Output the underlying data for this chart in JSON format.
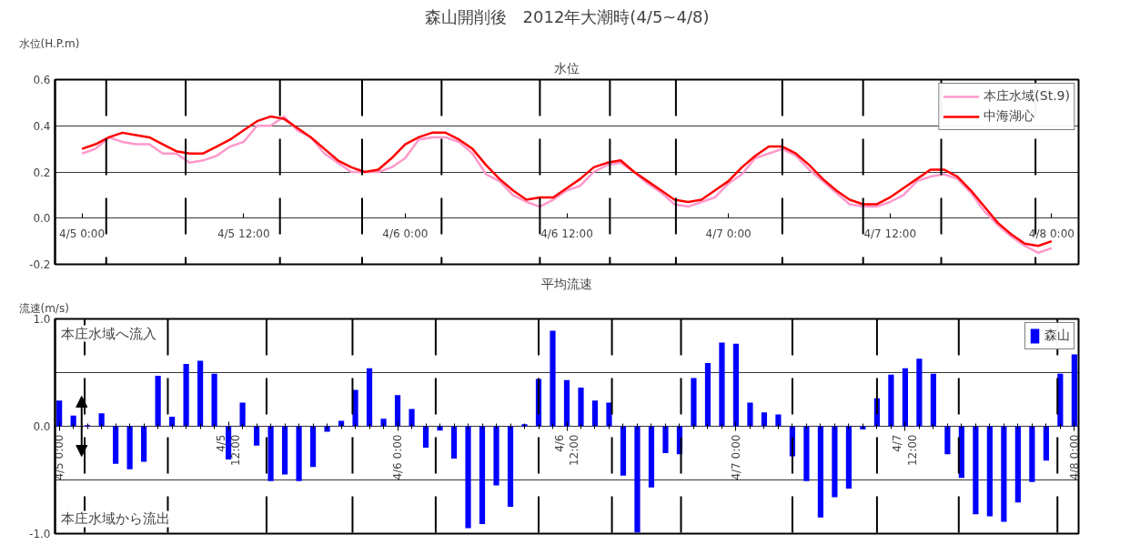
{
  "chart_data": [
    {
      "type": "line",
      "title": "森山開削後　2012年大潮時(4/5~4/8)",
      "subtitle": "水位",
      "ylabel": "水位(H.P.m)",
      "x": [
        "2012-04-05T00:00",
        "2012-04-05T01:00",
        "2012-04-05T02:00",
        "2012-04-05T03:00",
        "2012-04-05T04:00",
        "2012-04-05T05:00",
        "2012-04-05T06:00",
        "2012-04-05T07:00",
        "2012-04-05T08:00",
        "2012-04-05T09:00",
        "2012-04-05T10:00",
        "2012-04-05T11:00",
        "2012-04-05T12:00",
        "2012-04-05T13:00",
        "2012-04-05T14:00",
        "2012-04-05T15:00",
        "2012-04-05T16:00",
        "2012-04-05T17:00",
        "2012-04-05T18:00",
        "2012-04-05T19:00",
        "2012-04-05T20:00",
        "2012-04-05T21:00",
        "2012-04-05T22:00",
        "2012-04-05T23:00",
        "2012-04-06T00:00",
        "2012-04-06T01:00",
        "2012-04-06T02:00",
        "2012-04-06T03:00",
        "2012-04-06T04:00",
        "2012-04-06T05:00",
        "2012-04-06T06:00",
        "2012-04-06T07:00",
        "2012-04-06T08:00",
        "2012-04-06T09:00",
        "2012-04-06T10:00",
        "2012-04-06T11:00",
        "2012-04-06T12:00",
        "2012-04-06T13:00",
        "2012-04-06T14:00",
        "2012-04-06T15:00",
        "2012-04-06T16:00",
        "2012-04-06T17:00",
        "2012-04-06T18:00",
        "2012-04-06T19:00",
        "2012-04-06T20:00",
        "2012-04-06T21:00",
        "2012-04-06T22:00",
        "2012-04-06T23:00",
        "2012-04-07T00:00",
        "2012-04-07T01:00",
        "2012-04-07T02:00",
        "2012-04-07T03:00",
        "2012-04-07T04:00",
        "2012-04-07T05:00",
        "2012-04-07T06:00",
        "2012-04-07T07:00",
        "2012-04-07T08:00",
        "2012-04-07T09:00",
        "2012-04-07T10:00",
        "2012-04-07T11:00",
        "2012-04-07T12:00",
        "2012-04-07T13:00",
        "2012-04-07T14:00",
        "2012-04-07T15:00",
        "2012-04-07T16:00",
        "2012-04-07T17:00",
        "2012-04-07T18:00",
        "2012-04-07T19:00",
        "2012-04-07T20:00",
        "2012-04-07T21:00",
        "2012-04-07T22:00",
        "2012-04-07T23:00",
        "2012-04-08T00:00"
      ],
      "xlim": [
        "2012-04-04T22:00",
        "2012-04-08T02:00"
      ],
      "xticks": [
        {
          "value": "2012-04-05T00:00",
          "label": "4/5 0:00"
        },
        {
          "value": "2012-04-05T12:00",
          "label": "4/5 12:00"
        },
        {
          "value": "2012-04-06T00:00",
          "label": "4/6 0:00"
        },
        {
          "value": "2012-04-06T12:00",
          "label": "4/6 12:00"
        },
        {
          "value": "2012-04-07T00:00",
          "label": "4/7 0:00"
        },
        {
          "value": "2012-04-07T12:00",
          "label": "4/7 12:00"
        },
        {
          "value": "2012-04-08T00:00",
          "label": "4/8 0:00"
        }
      ],
      "ylim": [
        -0.2,
        0.6
      ],
      "yticks": [
        {
          "value": -0.2,
          "label": "-0.2"
        },
        {
          "value": 0,
          "label": "0.0"
        },
        {
          "value": 0.2,
          "label": "0.2"
        },
        {
          "value": 0.4,
          "label": "0.4"
        },
        {
          "value": 0.6,
          "label": "0.6"
        }
      ],
      "grid": "y",
      "legend": "top right",
      "line_style": "solid",
      "series": [
        {
          "name": "本庄水域(St.9)",
          "color": "#ff99cc",
          "values": [
            0.28,
            0.3,
            0.35,
            0.33,
            0.32,
            0.32,
            0.28,
            0.28,
            0.24,
            0.25,
            0.27,
            0.31,
            0.33,
            0.4,
            0.4,
            0.44,
            0.38,
            0.35,
            0.28,
            0.24,
            0.2,
            0.2,
            0.2,
            0.22,
            0.26,
            0.34,
            0.35,
            0.35,
            0.33,
            0.28,
            0.19,
            0.16,
            0.1,
            0.07,
            0.05,
            0.08,
            0.12,
            0.14,
            0.2,
            0.23,
            0.24,
            0.2,
            0.15,
            0.11,
            0.06,
            0.05,
            0.07,
            0.09,
            0.15,
            0.19,
            0.26,
            0.28,
            0.3,
            0.27,
            0.21,
            0.16,
            0.11,
            0.06,
            0.05,
            0.05,
            0.07,
            0.1,
            0.16,
            0.18,
            0.19,
            0.17,
            0.11,
            0.03,
            -0.03,
            -0.08,
            -0.12,
            -0.15,
            -0.13
          ]
        },
        {
          "name": "中海湖心",
          "color": "#ff0000",
          "values": [
            0.3,
            0.32,
            0.35,
            0.37,
            0.36,
            0.35,
            0.32,
            0.29,
            0.28,
            0.28,
            0.31,
            0.34,
            0.38,
            0.42,
            0.44,
            0.43,
            0.39,
            0.35,
            0.3,
            0.25,
            0.22,
            0.2,
            0.21,
            0.26,
            0.32,
            0.35,
            0.37,
            0.37,
            0.34,
            0.3,
            0.23,
            0.17,
            0.12,
            0.08,
            0.09,
            0.09,
            0.13,
            0.17,
            0.22,
            0.24,
            0.25,
            0.2,
            0.16,
            0.12,
            0.08,
            0.07,
            0.08,
            0.12,
            0.16,
            0.22,
            0.27,
            0.31,
            0.31,
            0.28,
            0.23,
            0.17,
            0.12,
            0.08,
            0.06,
            0.06,
            0.09,
            0.13,
            0.17,
            0.21,
            0.21,
            0.18,
            0.12,
            0.05,
            -0.02,
            -0.07,
            -0.11,
            -0.12,
            -0.1
          ]
        }
      ],
      "ref_lines": [
        {
          "axis": "x",
          "value": "2012-04-05T01:48",
          "color": "#000000",
          "line_style": "dashed"
        },
        {
          "axis": "x",
          "value": "2012-04-05T07:42",
          "color": "#000000",
          "line_style": "dashed"
        },
        {
          "axis": "x",
          "value": "2012-04-05T14:42",
          "color": "#000000",
          "line_style": "dashed"
        },
        {
          "axis": "x",
          "value": "2012-04-05T20:48",
          "color": "#000000",
          "line_style": "dashed"
        },
        {
          "axis": "x",
          "value": "2012-04-06T02:42",
          "color": "#000000",
          "line_style": "dashed"
        },
        {
          "axis": "x",
          "value": "2012-04-06T10:00",
          "color": "#000000",
          "line_style": "dashed"
        },
        {
          "axis": "x",
          "value": "2012-04-06T15:12",
          "color": "#000000",
          "line_style": "dashed"
        },
        {
          "axis": "x",
          "value": "2012-04-06T20:06",
          "color": "#000000",
          "line_style": "dashed"
        },
        {
          "axis": "x",
          "value": "2012-04-07T04:00",
          "color": "#000000",
          "line_style": "dashed"
        },
        {
          "axis": "x",
          "value": "2012-04-07T10:00",
          "color": "#000000",
          "line_style": "dashed"
        },
        {
          "axis": "x",
          "value": "2012-04-07T15:48",
          "color": "#000000",
          "line_style": "dashed"
        },
        {
          "axis": "x",
          "value": "2012-04-07T22:48",
          "color": "#000000",
          "line_style": "dashed"
        }
      ]
    },
    {
      "type": "bar",
      "title": "平均流速",
      "ylabel": "流速(m/s)",
      "x": [
        "2012-04-05T00:00",
        "2012-04-05T01:00",
        "2012-04-05T02:00",
        "2012-04-05T03:00",
        "2012-04-05T04:00",
        "2012-04-05T05:00",
        "2012-04-05T06:00",
        "2012-04-05T07:00",
        "2012-04-05T08:00",
        "2012-04-05T09:00",
        "2012-04-05T10:00",
        "2012-04-05T11:00",
        "2012-04-05T12:00",
        "2012-04-05T13:00",
        "2012-04-05T14:00",
        "2012-04-05T15:00",
        "2012-04-05T16:00",
        "2012-04-05T17:00",
        "2012-04-05T18:00",
        "2012-04-05T19:00",
        "2012-04-05T20:00",
        "2012-04-05T21:00",
        "2012-04-05T22:00",
        "2012-04-05T23:00",
        "2012-04-06T00:00",
        "2012-04-06T01:00",
        "2012-04-06T02:00",
        "2012-04-06T03:00",
        "2012-04-06T04:00",
        "2012-04-06T05:00",
        "2012-04-06T06:00",
        "2012-04-06T07:00",
        "2012-04-06T08:00",
        "2012-04-06T09:00",
        "2012-04-06T10:00",
        "2012-04-06T11:00",
        "2012-04-06T12:00",
        "2012-04-06T13:00",
        "2012-04-06T14:00",
        "2012-04-06T15:00",
        "2012-04-06T16:00",
        "2012-04-06T17:00",
        "2012-04-06T18:00",
        "2012-04-06T19:00",
        "2012-04-06T20:00",
        "2012-04-06T21:00",
        "2012-04-06T22:00",
        "2012-04-06T23:00",
        "2012-04-07T00:00",
        "2012-04-07T01:00",
        "2012-04-07T02:00",
        "2012-04-07T03:00",
        "2012-04-07T04:00",
        "2012-04-07T05:00",
        "2012-04-07T06:00",
        "2012-04-07T07:00",
        "2012-04-07T08:00",
        "2012-04-07T09:00",
        "2012-04-07T10:00",
        "2012-04-07T11:00",
        "2012-04-07T12:00",
        "2012-04-07T13:00",
        "2012-04-07T14:00",
        "2012-04-07T15:00",
        "2012-04-07T16:00",
        "2012-04-07T17:00",
        "2012-04-07T18:00",
        "2012-04-07T19:00",
        "2012-04-07T20:00",
        "2012-04-07T21:00",
        "2012-04-07T22:00",
        "2012-04-07T23:00",
        "2012-04-08T00:00"
      ],
      "xlim": [
        "2012-04-04T23:42",
        "2012-04-08T00:18"
      ],
      "xticks": [
        {
          "value": "2012-04-05T00:00",
          "label": "4/5 0:00"
        },
        {
          "value": "2012-04-05T12:00",
          "label": "4/5\n12:00"
        },
        {
          "value": "2012-04-06T00:00",
          "label": "4/6 0:00"
        },
        {
          "value": "2012-04-06T12:00",
          "label": "4/6\n12:00"
        },
        {
          "value": "2012-04-07T00:00",
          "label": "4/7 0:00"
        },
        {
          "value": "2012-04-07T12:00",
          "label": "4/7\n12:00"
        },
        {
          "value": "2012-04-08T00:00",
          "label": "4/8 0:00"
        }
      ],
      "ylim": [
        -1.0,
        1.0
      ],
      "yticks": [
        {
          "value": -1.0,
          "label": "-1.0"
        },
        {
          "value": -0.5,
          "label": null
        },
        {
          "value": 0,
          "label": "0.0"
        },
        {
          "value": 0.5,
          "label": null
        },
        {
          "value": 1.0,
          "label": "1.0"
        }
      ],
      "grid": "y",
      "legend": "top right",
      "annotations": [
        "本庄水域へ流入",
        "本庄水域から流出"
      ],
      "series": [
        {
          "name": "森山",
          "color": "#0000ff",
          "values": [
            0.24,
            0.1,
            0.01,
            0.12,
            -0.35,
            -0.4,
            -0.33,
            0.47,
            0.09,
            0.58,
            0.61,
            0.49,
            -0.31,
            0.22,
            -0.18,
            -0.51,
            -0.45,
            -0.51,
            -0.38,
            -0.05,
            0.05,
            0.34,
            0.54,
            0.07,
            0.29,
            0.16,
            -0.2,
            -0.04,
            -0.3,
            -0.95,
            -0.91,
            -0.55,
            -0.75,
            0.02,
            0.44,
            0.89,
            0.43,
            0.36,
            0.24,
            0.22,
            -0.46,
            -0.99,
            -0.57,
            -0.25,
            -0.26,
            0.45,
            0.59,
            0.78,
            0.77,
            0.22,
            0.13,
            0.11,
            -0.28,
            -0.51,
            -0.85,
            -0.66,
            -0.58,
            -0.03,
            0.26,
            0.48,
            0.54,
            0.63,
            0.49,
            -0.26,
            -0.48,
            -0.82,
            -0.84,
            -0.89,
            -0.71,
            -0.52,
            -0.32,
            0.49,
            0.67
          ]
        }
      ],
      "ref_lines": [
        {
          "axis": "x",
          "value": "2012-04-05T01:48",
          "color": "#000000",
          "line_style": "dashed"
        },
        {
          "axis": "x",
          "value": "2012-04-05T07:42",
          "color": "#000000",
          "line_style": "dashed"
        },
        {
          "axis": "x",
          "value": "2012-04-05T14:42",
          "color": "#000000",
          "line_style": "dashed"
        },
        {
          "axis": "x",
          "value": "2012-04-05T20:48",
          "color": "#000000",
          "line_style": "dashed"
        },
        {
          "axis": "x",
          "value": "2012-04-06T02:42",
          "color": "#000000",
          "line_style": "dashed"
        },
        {
          "axis": "x",
          "value": "2012-04-06T10:00",
          "color": "#000000",
          "line_style": "dashed"
        },
        {
          "axis": "x",
          "value": "2012-04-06T15:12",
          "color": "#000000",
          "line_style": "dashed"
        },
        {
          "axis": "x",
          "value": "2012-04-06T20:06",
          "color": "#000000",
          "line_style": "dashed"
        },
        {
          "axis": "x",
          "value": "2012-04-07T04:00",
          "color": "#000000",
          "line_style": "dashed"
        },
        {
          "axis": "x",
          "value": "2012-04-07T10:00",
          "color": "#000000",
          "line_style": "dashed"
        },
        {
          "axis": "x",
          "value": "2012-04-07T15:48",
          "color": "#000000",
          "line_style": "dashed"
        },
        {
          "axis": "x",
          "value": "2012-04-07T22:48",
          "color": "#000000",
          "line_style": "dashed"
        }
      ]
    }
  ]
}
